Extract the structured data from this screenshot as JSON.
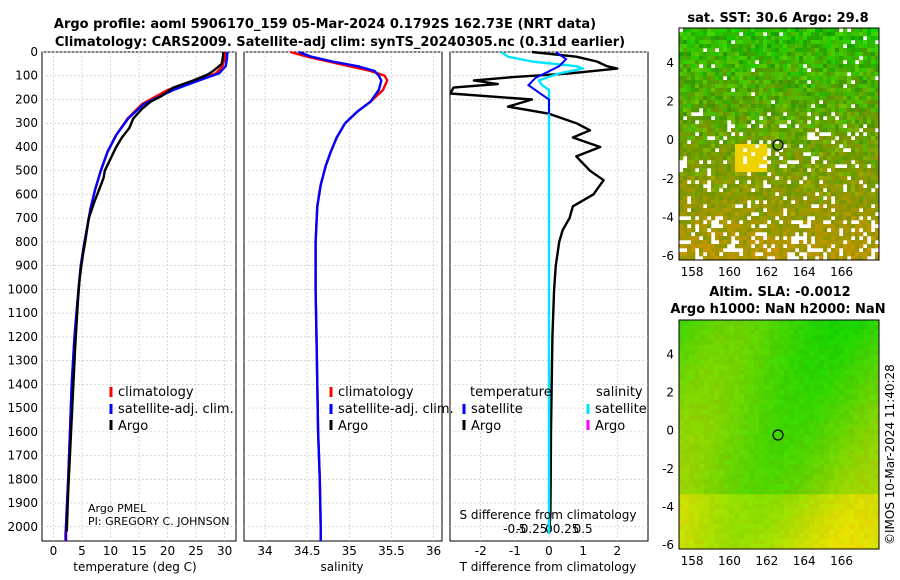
{
  "header": {
    "title_line1": "Argo profile: aoml 5906170_159 05-Mar-2024 0.1792S 162.73E (NRT data)",
    "title_line2": "Climatology: CARS2009. Satellite-adj clim: synTS_20240305.nc (0.31d earlier)"
  },
  "colors": {
    "climatology": "#ff0000",
    "satellite_adj": "#0000ff",
    "argo": "#000000",
    "salinity_sat": "#00e5ff",
    "salinity_argo": "#ff00ff"
  },
  "depth_axis": {
    "ticks": [
      "0",
      "100",
      "200",
      "300",
      "400",
      "500",
      "600",
      "700",
      "800",
      "900",
      "1000",
      "1100",
      "1200",
      "1300",
      "1400",
      "1500",
      "1600",
      "1700",
      "1800",
      "1900",
      "2000"
    ],
    "ylim": [
      0,
      2060
    ]
  },
  "temperature_panel": {
    "xlabel": "temperature (deg C)",
    "xticks": [
      "0",
      "5",
      "10",
      "15",
      "20",
      "25",
      "30"
    ],
    "xlim": [
      -2,
      32
    ],
    "legend": [
      "climatology",
      "satellite-adj. clim.",
      "Argo"
    ],
    "credit_line1": "Argo PMEL",
    "credit_line2": "PI: GREGORY C. JOHNSON"
  },
  "salinity_panel": {
    "xlabel": "salinity",
    "xticks": [
      "34",
      "34.5",
      "35",
      "35.5",
      "36"
    ],
    "xlim": [
      33.75,
      36.1
    ],
    "legend": [
      "climatology",
      "satellite-adj. clim.",
      "Argo"
    ]
  },
  "difference_panel": {
    "xlabel": "T difference from climatology",
    "top_label": "S difference from climatology",
    "xticks": [
      "-2",
      "-1",
      "0",
      "1",
      "2"
    ],
    "s_ticks": [
      "-0.5",
      "-0.25",
      "0",
      "0.25",
      "0.5"
    ],
    "xlim": [
      -2.9,
      2.9
    ],
    "legend_temperature_head": "temperature",
    "legend_salinity_head": "salinity",
    "legend_temperature": [
      "satellite",
      "Argo"
    ],
    "legend_salinity": [
      "satellite",
      "Argo"
    ]
  },
  "sst_map": {
    "title": "sat. SST: 30.6 Argo: 29.8",
    "xticks": [
      "158",
      "160",
      "162",
      "164",
      "166"
    ],
    "yticks": [
      "4",
      "2",
      "0",
      "-2",
      "-4",
      "-6"
    ]
  },
  "sla_map": {
    "title_line1": "Altim. SLA: -0.0012",
    "title_line2": "Argo h1000: NaN h2000: NaN",
    "xticks": [
      "158",
      "160",
      "162",
      "164",
      "166"
    ],
    "yticks": [
      "4",
      "2",
      "0",
      "-2",
      "-4",
      "-6"
    ]
  },
  "timestamp": "©IMOS 10-Mar-2024 11:40:28",
  "chart_data": [
    {
      "type": "line",
      "title": "temperature profile",
      "xlabel": "temperature (deg C)",
      "ylabel": "depth",
      "xlim": [
        -2,
        32
      ],
      "ylim": [
        0,
        2060
      ],
      "series": [
        {
          "name": "climatology",
          "x": [
            30.2,
            30.0,
            29.6,
            28.5,
            25.0,
            20.0,
            15.5,
            13.0,
            11.0,
            9.5,
            8.3,
            7.3,
            6.5,
            5.9,
            5.3,
            4.8,
            4.4,
            3.7,
            3.2,
            2.9,
            2.6,
            2.3,
            2.2,
            2.1,
            2.1
          ],
          "y": [
            0,
            30,
            60,
            90,
            120,
            160,
            220,
            280,
            350,
            420,
            500,
            580,
            660,
            740,
            820,
            900,
            1000,
            1200,
            1400,
            1600,
            1800,
            1950,
            2000,
            2030,
            2060
          ]
        },
        {
          "name": "satellite-adj. clim.",
          "x": [
            30.5,
            30.4,
            30.2,
            29.0,
            25.5,
            21.0,
            15.8,
            13.1,
            11.0,
            9.5,
            8.3,
            7.3,
            6.5,
            5.9,
            5.3,
            4.8,
            4.4,
            3.7,
            3.2,
            2.9,
            2.6,
            2.3,
            2.2,
            2.2,
            2.2
          ],
          "y": [
            0,
            30,
            60,
            90,
            120,
            160,
            220,
            280,
            350,
            420,
            500,
            580,
            660,
            740,
            820,
            900,
            1000,
            1200,
            1400,
            1600,
            1800,
            1950,
            2000,
            2030,
            2060
          ]
        },
        {
          "name": "Argo",
          "x": [
            29.8,
            29.7,
            29.5,
            28.0,
            27.0,
            24.5,
            21.0,
            19.0,
            17.0,
            15.5,
            14.0,
            13.3,
            12.0,
            11.0,
            10.0,
            9.0,
            8.8,
            8.0,
            7.2,
            6.2,
            5.7,
            5.2,
            4.6,
            4.3,
            3.8,
            3.4,
            3.0,
            2.6,
            2.4,
            2.35
          ],
          "y": [
            0,
            20,
            50,
            80,
            95,
            120,
            150,
            185,
            210,
            240,
            280,
            320,
            360,
            400,
            450,
            500,
            530,
            580,
            630,
            700,
            780,
            850,
            950,
            1050,
            1250,
            1450,
            1650,
            1850,
            1980,
            2020
          ]
        }
      ]
    },
    {
      "type": "line",
      "title": "salinity profile",
      "xlabel": "salinity",
      "ylabel": "depth",
      "xlim": [
        33.75,
        36.1
      ],
      "ylim": [
        0,
        2060
      ],
      "series": [
        {
          "name": "climatology",
          "x": [
            34.3,
            34.5,
            34.75,
            35.0,
            35.25,
            35.42,
            35.45,
            35.4,
            35.25,
            35.1,
            34.95,
            34.85,
            34.78,
            34.72,
            34.66,
            34.62,
            34.6,
            34.6,
            34.61,
            34.62,
            34.63,
            34.65,
            34.66,
            34.66
          ],
          "y": [
            0,
            20,
            40,
            60,
            80,
            100,
            120,
            160,
            210,
            250,
            300,
            360,
            420,
            480,
            560,
            650,
            800,
            1000,
            1200,
            1400,
            1600,
            1800,
            2000,
            2060
          ]
        },
        {
          "name": "satellite-adj. clim.",
          "x": [
            34.4,
            34.55,
            34.8,
            35.1,
            35.3,
            35.35,
            35.38,
            35.35,
            35.25,
            35.1,
            34.95,
            34.85,
            34.78,
            34.72,
            34.66,
            34.62,
            34.6,
            34.6,
            34.61,
            34.62,
            34.63,
            34.65,
            34.66,
            34.66
          ],
          "y": [
            0,
            20,
            40,
            60,
            80,
            100,
            120,
            160,
            210,
            250,
            300,
            360,
            420,
            480,
            560,
            650,
            800,
            1000,
            1200,
            1400,
            1600,
            1800,
            2000,
            2060
          ]
        }
      ]
    },
    {
      "type": "line",
      "title": "difference from climatology",
      "xlabel": "T difference from climatology",
      "ylabel": "depth",
      "xlim": [
        -2.9,
        2.9
      ],
      "ylim": [
        0,
        2060
      ],
      "series": [
        {
          "name": "temperature Argo",
          "x": [
            -0.5,
            0.8,
            1.4,
            1.7,
            2.0,
            0.6,
            -1.0,
            -2.2,
            -1.5,
            -2.8,
            -3.0,
            -0.5,
            -1.2,
            0.0,
            0.8,
            1.2,
            0.7,
            1.5,
            0.8,
            1.0,
            1.2,
            1.6,
            1.3,
            0.7,
            0.6,
            0.4,
            0.3,
            0.2,
            0.15,
            0.1,
            0.08,
            0.06,
            0.05,
            0.04,
            0.0
          ],
          "y": [
            0,
            20,
            40,
            60,
            70,
            90,
            105,
            120,
            135,
            150,
            175,
            200,
            230,
            260,
            300,
            330,
            360,
            400,
            440,
            470,
            500,
            540,
            600,
            650,
            700,
            750,
            800,
            900,
            1000,
            1200,
            1400,
            1600,
            1800,
            1950,
            2030
          ]
        },
        {
          "name": "salinity satellite",
          "x": [
            -1.4,
            -1.2,
            -0.5,
            0.8,
            1.0,
            0.3,
            0.0,
            -0.3,
            -0.2,
            0.0,
            0.0,
            0.0,
            0.0,
            0.0,
            0.0,
            0.0,
            0.0,
            0.0,
            0.0,
            0.0,
            0.0
          ],
          "y": [
            0,
            20,
            40,
            60,
            70,
            90,
            105,
            120,
            140,
            160,
            200,
            300,
            400,
            600,
            800,
            1000,
            1200,
            1400,
            1600,
            1800,
            2030
          ]
        }
      ]
    }
  ]
}
